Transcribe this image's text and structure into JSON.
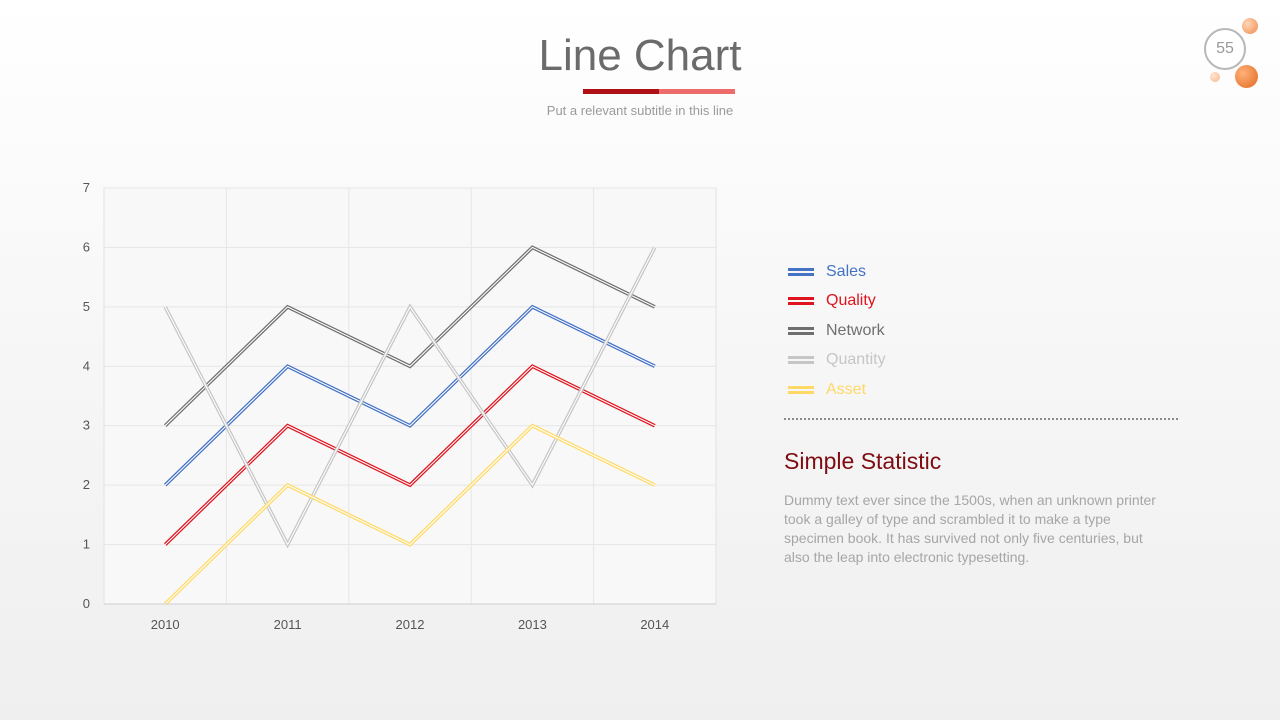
{
  "header": {
    "title": "Line Chart",
    "subtitle": "Put a relevant subtitle in this line",
    "page_number": "55"
  },
  "sidebar": {
    "stat_title": "Simple Statistic",
    "stat_text": "Dummy text ever since the 1500s, when an unknown printer took a galley of type and scrambled it to make a type specimen book. It has survived not only five centuries, but also the leap into electronic typesetting."
  },
  "chart_data": {
    "type": "line",
    "x": [
      "2010",
      "2011",
      "2012",
      "2013",
      "2014"
    ],
    "ylim": [
      0,
      7
    ],
    "yticks": [
      0,
      1,
      2,
      3,
      4,
      5,
      6,
      7
    ],
    "grid": true,
    "legend_position": "right",
    "series": [
      {
        "name": "Sales",
        "color": "#4472c4",
        "values": [
          2,
          4,
          3,
          5,
          4
        ]
      },
      {
        "name": "Quality",
        "color": "#e0141e",
        "values": [
          1,
          3,
          2,
          4,
          3
        ]
      },
      {
        "name": "Network",
        "color": "#6f6f6f",
        "values": [
          3,
          5,
          4,
          6,
          5
        ]
      },
      {
        "name": "Quantity",
        "color": "#c6c6c6",
        "values": [
          5,
          1,
          5,
          2,
          6
        ]
      },
      {
        "name": "Asset",
        "color": "#ffd966",
        "values": [
          0,
          2,
          1,
          3,
          2
        ]
      }
    ]
  }
}
